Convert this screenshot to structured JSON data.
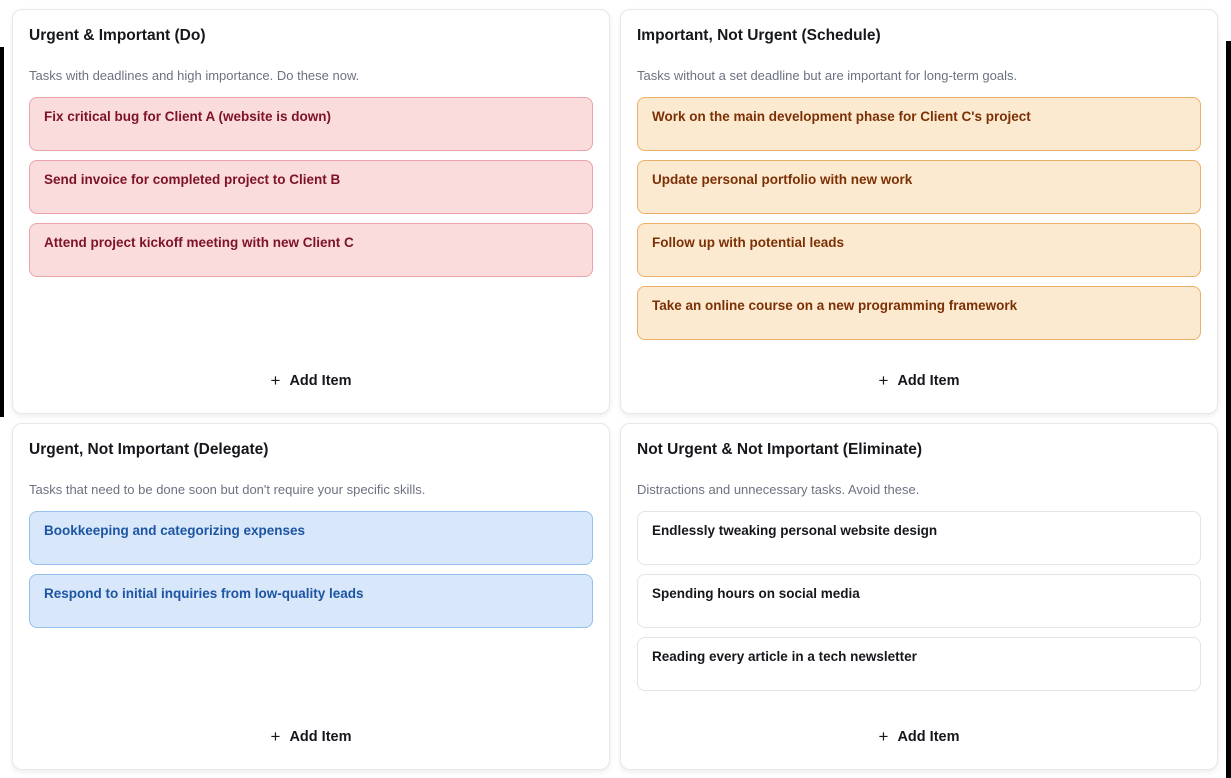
{
  "board": {
    "add_item_label": "Add Item",
    "plus_icon": "+",
    "quadrants": [
      {
        "title": "Urgent & Important (Do)",
        "description": "Tasks with deadlines and high importance. Do these now.",
        "theme": "red",
        "items": [
          "Fix critical bug for Client A (website is down)",
          "Send invoice for completed project to Client B",
          "Attend project kickoff meeting with new Client C"
        ]
      },
      {
        "title": "Important, Not Urgent (Schedule)",
        "description": "Tasks without a set deadline but are important for long-term goals.",
        "theme": "orange",
        "items": [
          "Work on the main development phase for Client C's project",
          "Update personal portfolio with new work",
          "Follow up with potential leads",
          "Take an online course on a new programming framework"
        ]
      },
      {
        "title": "Urgent, Not Important (Delegate)",
        "description": "Tasks that need to be done soon but don't require your specific skills.",
        "theme": "blue",
        "items": [
          "Bookkeeping and categorizing expenses",
          "Respond to initial inquiries from low-quality leads"
        ]
      },
      {
        "title": "Not Urgent & Not Important (Eliminate)",
        "description": "Distractions and unnecessary tasks. Avoid these.",
        "theme": "neutral",
        "items": [
          "Endlessly tweaking personal website design",
          "Spending hours on social media",
          "Reading every article in a tech newsletter"
        ]
      }
    ]
  },
  "colors": {
    "card_red_bg": "#fbdcdc",
    "card_red_border": "#eba2ab",
    "card_red_text": "#7d1228",
    "card_orange_bg": "#fcead0",
    "card_orange_border": "#edaf68",
    "card_orange_text": "#7c3005",
    "card_blue_bg": "#d8e7f9",
    "card_blue_border": "#94c0ee",
    "card_blue_text": "#1d55a4",
    "card_neutral_bg": "#ffffff",
    "card_neutral_border": "#e2e4e8",
    "card_neutral_text": "#15171c",
    "quadrant_border": "#e8e8ea",
    "description_text": "#6b7280"
  }
}
